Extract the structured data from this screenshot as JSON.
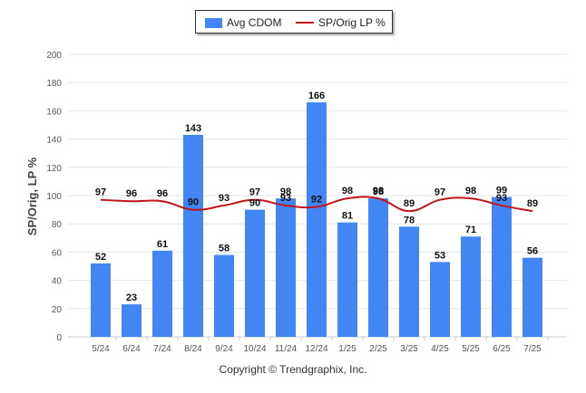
{
  "legend": {
    "bar_label": "Avg CDOM",
    "line_label": "SP/Orig LP %"
  },
  "footer": {
    "copyright": "Copyright © Trendgraphix, Inc."
  },
  "colors": {
    "bar": "#4286f4",
    "line": "#c0151b",
    "grid": "#e6e6e6",
    "axis_text": "#555555"
  },
  "chart_data": {
    "type": "bar",
    "categories": [
      "5/24",
      "6/24",
      "7/24",
      "8/24",
      "9/24",
      "10/24",
      "11/24",
      "12/24",
      "1/25",
      "2/25",
      "3/25",
      "4/25",
      "5/25",
      "6/25",
      "7/25"
    ],
    "series": [
      {
        "name": "Avg CDOM",
        "type": "bar",
        "values": [
          52,
          23,
          61,
          143,
          58,
          90,
          98,
          166,
          81,
          98,
          78,
          53,
          71,
          99,
          56
        ]
      },
      {
        "name": "SP/Orig LP %",
        "type": "line",
        "values": [
          97,
          96,
          96,
          90,
          93,
          97,
          93,
          92,
          98,
          98,
          89,
          97,
          98,
          93,
          89
        ]
      }
    ],
    "ylabel": "SP/Orig, LP %",
    "ylim": [
      0,
      200
    ],
    "yticks": [
      0,
      20,
      40,
      60,
      80,
      100,
      120,
      140,
      160,
      180,
      200
    ],
    "grid": true,
    "legend_position": "top-center"
  }
}
